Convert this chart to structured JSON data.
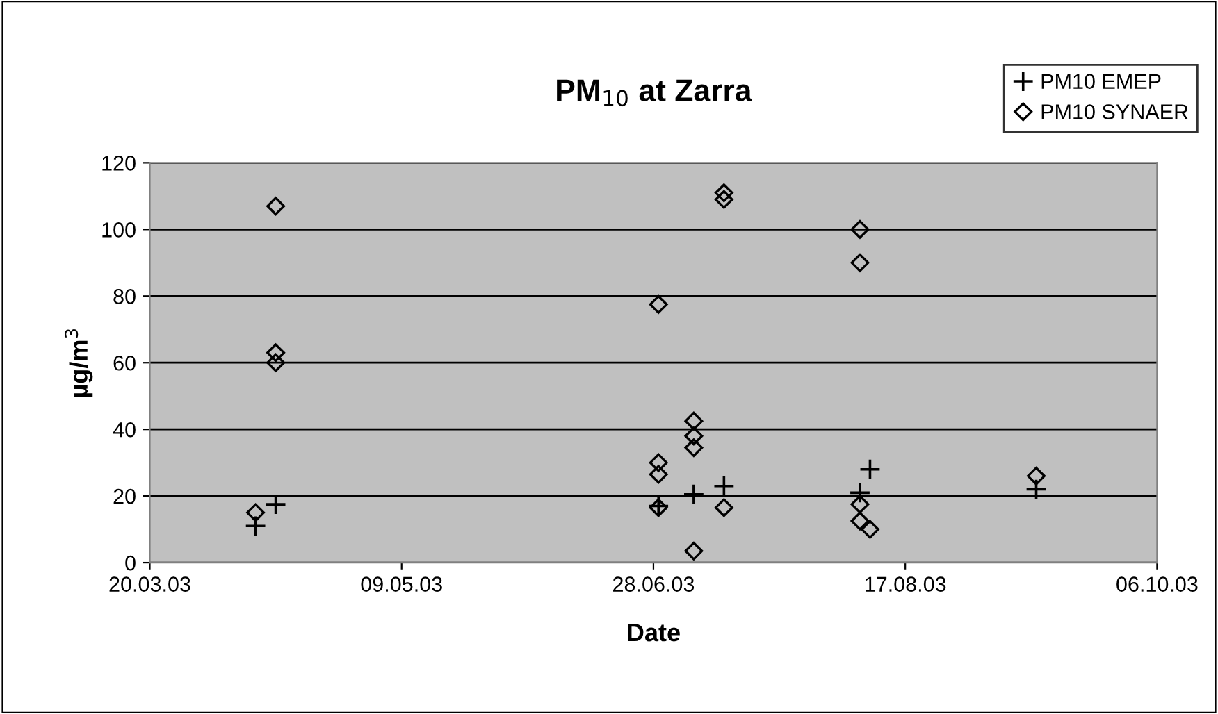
{
  "chart_data": {
    "type": "scatter",
    "title": "PM$_{10}$ at Zarra",
    "xlabel": "Date",
    "ylabel": "µg/m$^{3}$",
    "xlim": [
      "2003-03-20",
      "2003-10-06"
    ],
    "xticks": [
      {
        "value": "2003-03-20",
        "label": "20.03.03"
      },
      {
        "value": "2003-05-09",
        "label": "09.05.03"
      },
      {
        "value": "2003-06-28",
        "label": "28.06.03"
      },
      {
        "value": "2003-08-17",
        "label": "17.08.03"
      },
      {
        "value": "2003-10-06",
        "label": "06.10.03"
      }
    ],
    "ylim": [
      0,
      120
    ],
    "yticks": [
      0,
      20,
      40,
      60,
      80,
      100,
      120
    ],
    "grid": "y",
    "legend": "top right",
    "series": [
      {
        "name": "PM10 EMEP",
        "color": "#000000",
        "marker": "cross",
        "x": [
          "2003-04-10",
          "2003-04-14",
          "2003-06-29",
          "2003-07-06",
          "2003-07-12",
          "2003-08-08",
          "2003-08-10",
          "2003-09-12"
        ],
        "values": [
          11,
          17.5,
          17,
          20.5,
          23,
          21,
          28,
          22
        ]
      },
      {
        "name": "PM10 SYNAER",
        "color": "#000000",
        "marker": "diamond",
        "x": [
          "2003-04-10",
          "2003-04-14",
          "2003-04-14",
          "2003-04-14",
          "2003-06-29",
          "2003-06-29",
          "2003-06-29",
          "2003-06-29",
          "2003-07-06",
          "2003-07-06",
          "2003-07-06",
          "2003-07-06",
          "2003-07-12",
          "2003-07-12",
          "2003-07-12",
          "2003-08-08",
          "2003-08-08",
          "2003-08-08",
          "2003-08-08",
          "2003-08-10",
          "2003-09-12"
        ],
        "values": [
          15,
          107,
          63,
          60,
          77.5,
          30,
          26.5,
          16.5,
          42.5,
          38,
          34.5,
          3.5,
          111,
          109,
          16.5,
          100,
          90,
          17.5,
          12.5,
          10,
          26
        ]
      }
    ]
  }
}
